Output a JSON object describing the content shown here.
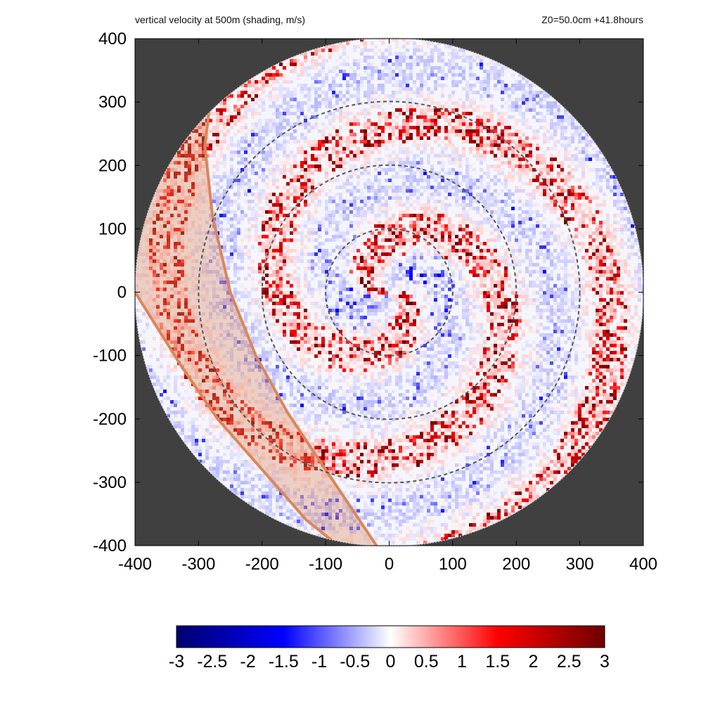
{
  "title": "vertical velocity at 500m (shading, m/s)",
  "subtitle": "Z0=50.0cm  +41.8hours",
  "chart_data": {
    "type": "heatmap",
    "title": "vertical velocity at 500m (shading, m/s)",
    "subtitle": "Z0=50.0cm  +41.8hours",
    "xlabel": "",
    "ylabel": "",
    "xlim": [
      -400,
      400
    ],
    "ylim": [
      -400,
      400
    ],
    "x_ticks": [
      "-400",
      "-300",
      "-200",
      "-100",
      "0",
      "100",
      "200",
      "300",
      "400"
    ],
    "y_ticks": [
      "400",
      "300",
      "200",
      "100",
      "0",
      "-100",
      "-200",
      "-300",
      "-400"
    ],
    "domain_radius": 400,
    "range_circles": [
      100,
      200,
      300
    ],
    "background_color": "#404040",
    "colorbar": {
      "min": -3,
      "max": 3,
      "ticks": [
        "-3",
        "-2.5",
        "-2",
        "-1.5",
        "-1",
        "-0.5",
        "0",
        "0.5",
        "1",
        "1.5",
        "2",
        "2.5",
        "3"
      ],
      "colors": [
        "#00006e",
        "#0000ff",
        "#ffffff",
        "#ff0000",
        "#6e0000"
      ]
    },
    "shaded_sector": {
      "color": "#d9875a",
      "outer_edge": [
        [
          -283,
          290
        ],
        [
          -290,
          230
        ],
        [
          -278,
          120
        ],
        [
          -250,
          0
        ],
        [
          -210,
          -100
        ],
        [
          -160,
          -190
        ],
        [
          -100,
          -280
        ],
        [
          -20,
          -400
        ]
      ],
      "inner_edge": [
        [
          -400,
          0
        ],
        [
          -375,
          -40
        ],
        [
          -325,
          -120
        ],
        [
          -270,
          -200
        ],
        [
          -200,
          -280
        ],
        [
          -130,
          -360
        ],
        [
          -80,
          -400
        ]
      ]
    },
    "features": {
      "updraft_max": 2.8,
      "downdraft_min": -2.0,
      "eyewall_radius": 50
    }
  }
}
